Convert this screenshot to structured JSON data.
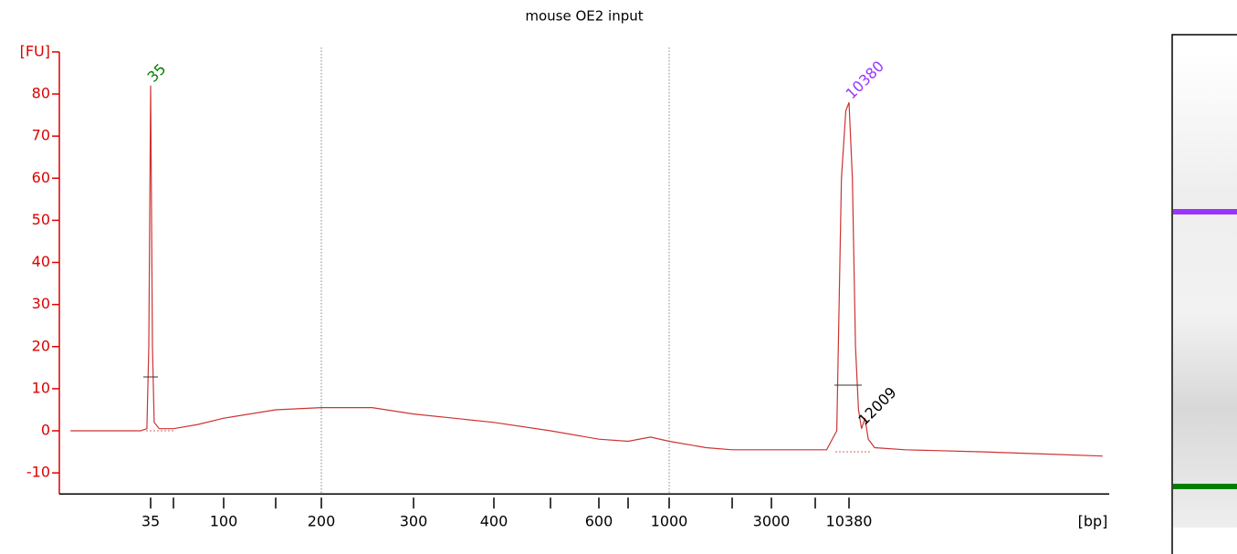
{
  "chart_data": {
    "type": "line",
    "title": "mouse OE2 input",
    "x_label": "[bp]",
    "color": "#cc3333",
    "x": [
      10,
      20,
      30,
      33,
      34,
      35,
      36,
      37,
      40,
      50,
      70,
      100,
      150,
      200,
      250,
      300,
      400,
      500,
      600,
      700,
      850,
      1000,
      1500,
      2000,
      3000,
      6000,
      8000,
      9000,
      9500,
      10000,
      10380,
      10800,
      11200,
      11600,
      12009,
      12500,
      13000,
      14000,
      20000,
      50000,
      100000,
      200000
    ],
    "values": [
      0,
      0,
      0,
      0.5,
      20,
      82,
      20,
      2,
      0.5,
      0.5,
      1.5,
      3,
      5,
      5.5,
      5.5,
      4,
      2,
      0,
      -2,
      -2.5,
      -1.5,
      -2.5,
      -4,
      -4.5,
      -4.5,
      -4.5,
      -4.5,
      0,
      60,
      76,
      78,
      60,
      20,
      5,
      0.5,
      3,
      -2,
      -4,
      -4.5,
      -5,
      -5.5,
      -6
    ],
    "xlim": [
      8.4,
      216000
    ],
    "xscale": "log",
    "xticks": [
      35,
      100,
      200,
      300,
      400,
      600,
      1000,
      3000,
      10380
    ],
    "xminor_ticks": [
      50,
      150,
      500,
      700,
      2000,
      7000
    ],
    "ref_lines": [
      200,
      1000
    ],
    "ylim": [
      -15,
      90
    ],
    "yticks": [
      {
        "value": 90,
        "label": "[FU]"
      },
      80,
      70,
      60,
      50,
      40,
      30,
      20,
      10,
      0,
      -10
    ],
    "axis_color": "#dd0000",
    "peaks": [
      {
        "value": 35,
        "height": 82,
        "color": "#008000"
      },
      {
        "value": 10380,
        "height": 78,
        "color": "#9933ff"
      },
      {
        "value": 12009,
        "height": 0.5,
        "color": "#000000"
      }
    ]
  }
}
